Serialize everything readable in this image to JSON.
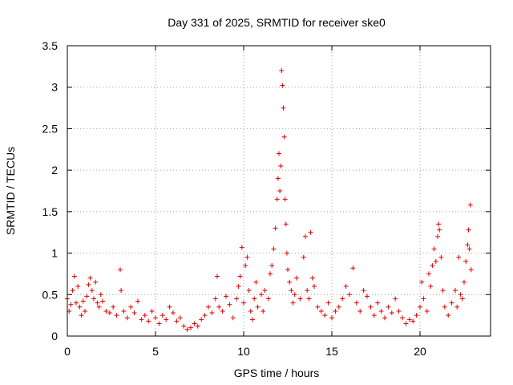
{
  "chart_data": {
    "type": "scatter",
    "title": "Day 331 of 2025, SRMTID for receiver ske0",
    "xlabel": "GPS time / hours",
    "ylabel": "SRMTID / TECUs",
    "xlim": [
      0,
      24
    ],
    "ylim": [
      0,
      3.5
    ],
    "xticks": [
      0,
      5,
      10,
      15,
      20
    ],
    "yticks": [
      0,
      0.5,
      1,
      1.5,
      2,
      2.5,
      3,
      3.5
    ],
    "xtick_labels": [
      "0",
      "5",
      "10",
      "15",
      "20"
    ],
    "ytick_labels": [
      "0",
      "0.5",
      "1",
      "1.5",
      "2",
      "2.5",
      "3",
      "3.5"
    ],
    "grid": true,
    "marker": "+",
    "color": "#e00000",
    "series": [
      {
        "name": "SRMTID",
        "points": [
          [
            0.0,
            0.45
          ],
          [
            0.1,
            0.3
          ],
          [
            0.2,
            0.38
          ],
          [
            0.3,
            0.55
          ],
          [
            0.4,
            0.72
          ],
          [
            0.5,
            0.4
          ],
          [
            0.6,
            0.6
          ],
          [
            0.7,
            0.35
          ],
          [
            0.8,
            0.25
          ],
          [
            0.9,
            0.42
          ],
          [
            1.0,
            0.3
          ],
          [
            1.1,
            0.48
          ],
          [
            1.2,
            0.62
          ],
          [
            1.3,
            0.7
          ],
          [
            1.4,
            0.55
          ],
          [
            1.5,
            0.45
          ],
          [
            1.6,
            0.65
          ],
          [
            1.7,
            0.4
          ],
          [
            1.8,
            0.35
          ],
          [
            1.9,
            0.5
          ],
          [
            2.0,
            0.42
          ],
          [
            2.2,
            0.3
          ],
          [
            2.4,
            0.28
          ],
          [
            2.6,
            0.35
          ],
          [
            2.8,
            0.25
          ],
          [
            3.0,
            0.8
          ],
          [
            3.05,
            0.55
          ],
          [
            3.2,
            0.3
          ],
          [
            3.4,
            0.22
          ],
          [
            3.6,
            0.35
          ],
          [
            3.8,
            0.28
          ],
          [
            4.0,
            0.42
          ],
          [
            4.2,
            0.2
          ],
          [
            4.4,
            0.25
          ],
          [
            4.6,
            0.18
          ],
          [
            4.8,
            0.3
          ],
          [
            5.0,
            0.22
          ],
          [
            5.2,
            0.15
          ],
          [
            5.4,
            0.25
          ],
          [
            5.6,
            0.2
          ],
          [
            5.8,
            0.35
          ],
          [
            6.0,
            0.28
          ],
          [
            6.2,
            0.18
          ],
          [
            6.4,
            0.22
          ],
          [
            6.6,
            0.12
          ],
          [
            6.8,
            0.08
          ],
          [
            7.0,
            0.1
          ],
          [
            7.2,
            0.15
          ],
          [
            7.4,
            0.12
          ],
          [
            7.6,
            0.2
          ],
          [
            7.8,
            0.25
          ],
          [
            8.0,
            0.35
          ],
          [
            8.2,
            0.28
          ],
          [
            8.4,
            0.45
          ],
          [
            8.5,
            0.72
          ],
          [
            8.6,
            0.35
          ],
          [
            8.8,
            0.3
          ],
          [
            9.0,
            0.48
          ],
          [
            9.2,
            0.38
          ],
          [
            9.4,
            0.22
          ],
          [
            9.6,
            0.45
          ],
          [
            9.7,
            0.6
          ],
          [
            9.8,
            0.72
          ],
          [
            9.9,
            1.07
          ],
          [
            10.0,
            0.4
          ],
          [
            10.1,
            0.85
          ],
          [
            10.2,
            0.95
          ],
          [
            10.3,
            0.55
          ],
          [
            10.4,
            0.3
          ],
          [
            10.5,
            0.2
          ],
          [
            10.6,
            0.45
          ],
          [
            10.7,
            0.65
          ],
          [
            10.8,
            0.35
          ],
          [
            11.0,
            0.5
          ],
          [
            11.1,
            0.3
          ],
          [
            11.2,
            0.55
          ],
          [
            11.4,
            0.45
          ],
          [
            11.5,
            0.75
          ],
          [
            11.6,
            0.85
          ],
          [
            11.7,
            1.05
          ],
          [
            11.8,
            1.3
          ],
          [
            11.9,
            1.65
          ],
          [
            11.95,
            1.9
          ],
          [
            12.0,
            2.2
          ],
          [
            12.05,
            1.75
          ],
          [
            12.1,
            2.05
          ],
          [
            12.15,
            3.2
          ],
          [
            12.2,
            3.02
          ],
          [
            12.25,
            2.75
          ],
          [
            12.3,
            2.4
          ],
          [
            12.35,
            1.65
          ],
          [
            12.4,
            1.35
          ],
          [
            12.45,
            1.0
          ],
          [
            12.5,
            0.8
          ],
          [
            12.6,
            0.65
          ],
          [
            12.7,
            0.55
          ],
          [
            12.8,
            0.4
          ],
          [
            12.9,
            0.5
          ],
          [
            13.0,
            0.7
          ],
          [
            13.2,
            0.45
          ],
          [
            13.4,
            0.95
          ],
          [
            13.5,
            1.2
          ],
          [
            13.6,
            0.55
          ],
          [
            13.7,
            0.45
          ],
          [
            13.8,
            1.25
          ],
          [
            13.9,
            0.7
          ],
          [
            14.0,
            0.6
          ],
          [
            14.2,
            0.35
          ],
          [
            14.4,
            0.3
          ],
          [
            14.6,
            0.25
          ],
          [
            14.8,
            0.4
          ],
          [
            15.0,
            0.22
          ],
          [
            15.2,
            0.3
          ],
          [
            15.4,
            0.35
          ],
          [
            15.6,
            0.45
          ],
          [
            15.8,
            0.6
          ],
          [
            16.0,
            0.5
          ],
          [
            16.2,
            0.82
          ],
          [
            16.4,
            0.4
          ],
          [
            16.6,
            0.3
          ],
          [
            16.8,
            0.55
          ],
          [
            17.0,
            0.48
          ],
          [
            17.2,
            0.35
          ],
          [
            17.4,
            0.25
          ],
          [
            17.6,
            0.4
          ],
          [
            17.8,
            0.3
          ],
          [
            18.0,
            0.22
          ],
          [
            18.2,
            0.35
          ],
          [
            18.4,
            0.28
          ],
          [
            18.6,
            0.45
          ],
          [
            18.8,
            0.3
          ],
          [
            19.0,
            0.22
          ],
          [
            19.2,
            0.15
          ],
          [
            19.4,
            0.2
          ],
          [
            19.6,
            0.18
          ],
          [
            19.8,
            0.25
          ],
          [
            20.0,
            0.35
          ],
          [
            20.1,
            0.65
          ],
          [
            20.2,
            0.45
          ],
          [
            20.4,
            0.3
          ],
          [
            20.5,
            0.75
          ],
          [
            20.6,
            0.6
          ],
          [
            20.7,
            0.85
          ],
          [
            20.8,
            1.05
          ],
          [
            20.9,
            0.9
          ],
          [
            21.0,
            1.2
          ],
          [
            21.05,
            1.35
          ],
          [
            21.1,
            1.28
          ],
          [
            21.2,
            0.95
          ],
          [
            21.3,
            0.55
          ],
          [
            21.4,
            0.35
          ],
          [
            21.6,
            0.25
          ],
          [
            21.8,
            0.4
          ],
          [
            22.0,
            0.55
          ],
          [
            22.1,
            0.35
          ],
          [
            22.2,
            0.95
          ],
          [
            22.3,
            0.5
          ],
          [
            22.4,
            0.45
          ],
          [
            22.5,
            0.65
          ],
          [
            22.6,
            0.9
          ],
          [
            22.7,
            1.1
          ],
          [
            22.75,
            1.28
          ],
          [
            22.8,
            1.05
          ],
          [
            22.85,
            1.58
          ],
          [
            22.9,
            0.8
          ]
        ]
      }
    ]
  }
}
